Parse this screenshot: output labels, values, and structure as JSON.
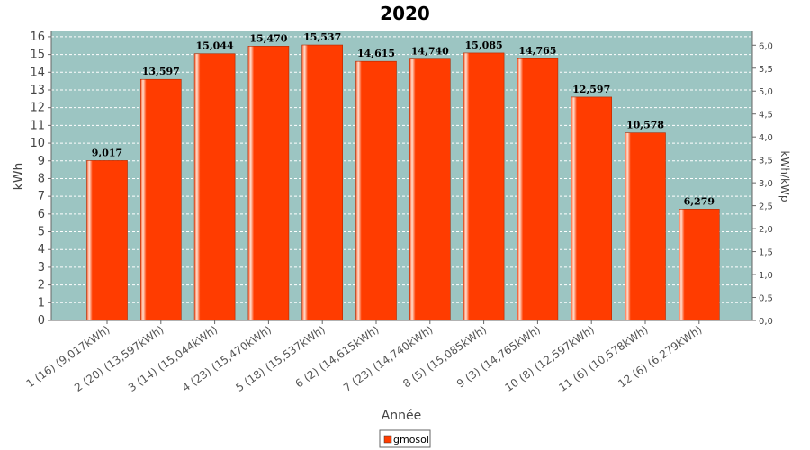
{
  "chart_data": {
    "type": "bar",
    "title": "2020",
    "xlabel": "Année",
    "ylabel": "kWh",
    "ylabel_right": "kWh/kWp",
    "ylim": [
      0,
      16.3
    ],
    "y_ticks": [
      "0",
      "1",
      "2",
      "3",
      "4",
      "5",
      "6",
      "7",
      "8",
      "9",
      "10",
      "11",
      "12",
      "13",
      "14",
      "15",
      "16"
    ],
    "ylim_right": [
      0,
      6.3
    ],
    "y_ticks_right": [
      "0,0",
      "0,5",
      "1,0",
      "1,5",
      "2,0",
      "2,5",
      "3,0",
      "3,5",
      "4,0",
      "4,5",
      "5,0",
      "5,5",
      "6,0"
    ],
    "categories": [
      "1 (16)  (9,017kWh)",
      "2 (20)  (13,597kWh)",
      "3 (14)  (15,044kWh)",
      "4 (23)  (15,470kWh)",
      "5 (18)  (15,537kWh)",
      "6 (2)  (14,615kWh)",
      "7 (23)  (14,740kWh)",
      "8 (5)  (15,085kWh)",
      "9 (3)  (14,765kWh)",
      "10 (8)  (12,597kWh)",
      "11 (6)  (10,578kWh)",
      "12 (6)  (6,279kWh)"
    ],
    "values": [
      9.017,
      13.597,
      15.044,
      15.47,
      15.537,
      14.615,
      14.74,
      15.085,
      14.765,
      12.597,
      10.578,
      6.279
    ],
    "value_labels": [
      "9,017",
      "13,597",
      "15,044",
      "15,470",
      "15,537",
      "14,615",
      "14,740",
      "15,085",
      "14,765",
      "12,597",
      "10,578",
      "6,279"
    ],
    "series": [
      {
        "name": "gmosol",
        "color": "#ff3c00"
      }
    ],
    "plot_background": "#9cc5c2",
    "grid": true,
    "legend": "bottom-center"
  }
}
